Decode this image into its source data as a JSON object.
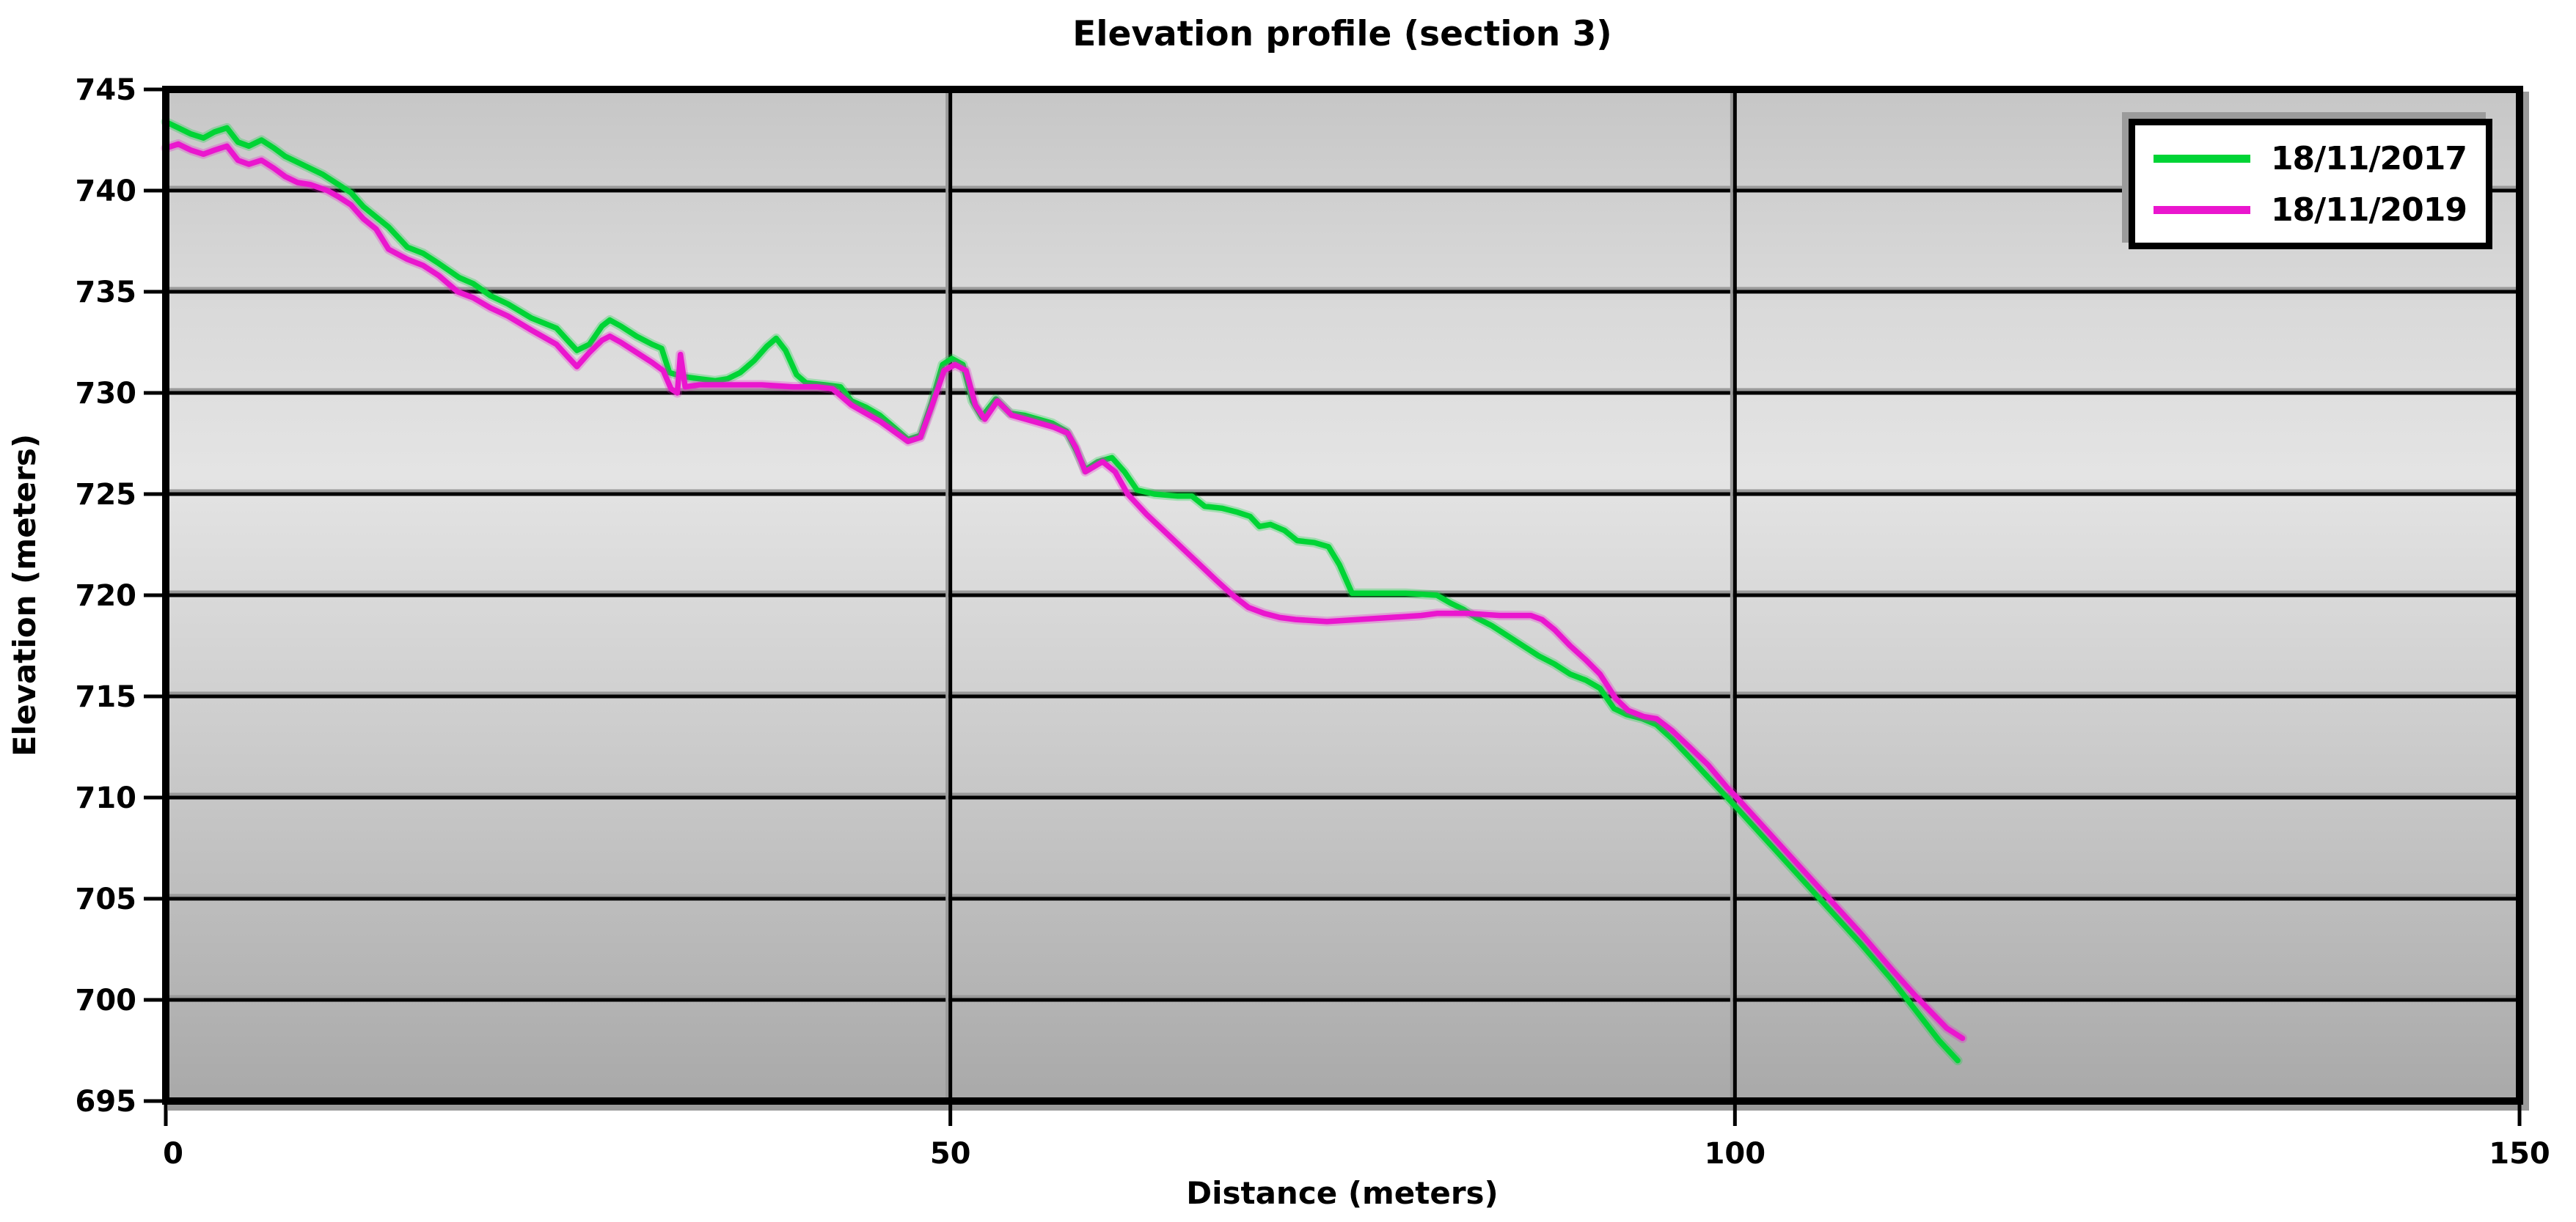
{
  "title": "Elevation profile (section 3)",
  "x_axis": {
    "label": "Distance (meters)",
    "ticks": [
      0,
      50,
      100,
      150
    ],
    "min": 0,
    "max": 150
  },
  "y_axis": {
    "label": "Elevation (meters)",
    "ticks": [
      745,
      740,
      735,
      730,
      725,
      720,
      715,
      710,
      705,
      700,
      695
    ],
    "min": 695,
    "max": 745
  },
  "chart_data": {
    "type": "line",
    "title": "Elevation profile (section 3)",
    "xlabel": "Distance (meters)",
    "ylabel": "Elevation (meters)",
    "xlim": [
      0,
      150
    ],
    "ylim": [
      695,
      745
    ],
    "grid": true,
    "legend_position": "top-right",
    "colors": {
      "background_top": "#c6c6c6",
      "background_mid": "#e4e4e4",
      "background_bottom": "#a9a9a9",
      "gridline": "#000000",
      "grid_shadow": "#9a9a9a",
      "border": "#000000",
      "border_shadow": "#9b9b9b"
    },
    "series": [
      {
        "name": "18/11/2017",
        "color": "#00d435",
        "points": [
          [
            0,
            743.4
          ],
          [
            0.8,
            743.1
          ],
          [
            1.6,
            742.8
          ],
          [
            2.4,
            742.6
          ],
          [
            3.1,
            742.9
          ],
          [
            3.9,
            743.1
          ],
          [
            4.6,
            742.4
          ],
          [
            5.3,
            742.2
          ],
          [
            6.1,
            742.5
          ],
          [
            6.9,
            742.1
          ],
          [
            7.6,
            741.7
          ],
          [
            8.4,
            741.4
          ],
          [
            9.2,
            741.1
          ],
          [
            10,
            740.8
          ],
          [
            11,
            740.3
          ],
          [
            11.8,
            739.9
          ],
          [
            12.6,
            739.2
          ],
          [
            13.4,
            738.7
          ],
          [
            14.2,
            738.2
          ],
          [
            15.4,
            737.2
          ],
          [
            16.4,
            736.9
          ],
          [
            17.4,
            736.4
          ],
          [
            18.7,
            735.7
          ],
          [
            19.6,
            735.4
          ],
          [
            20.7,
            734.8
          ],
          [
            21.8,
            734.4
          ],
          [
            23.3,
            733.7
          ],
          [
            24.9,
            733.2
          ],
          [
            25.6,
            732.6
          ],
          [
            26.2,
            732.1
          ],
          [
            27,
            732.4
          ],
          [
            27.8,
            733.3
          ],
          [
            28.3,
            733.6
          ],
          [
            29,
            733.3
          ],
          [
            30,
            732.8
          ],
          [
            31,
            732.4
          ],
          [
            31.6,
            732.2
          ],
          [
            32.1,
            731.0
          ],
          [
            33,
            730.8
          ],
          [
            34,
            730.7
          ],
          [
            35,
            730.6
          ],
          [
            35.8,
            730.7
          ],
          [
            36.6,
            731.0
          ],
          [
            37.5,
            731.6
          ],
          [
            38.3,
            732.3
          ],
          [
            38.9,
            732.7
          ],
          [
            39.5,
            732.1
          ],
          [
            40.2,
            730.9
          ],
          [
            40.8,
            730.5
          ],
          [
            42,
            730.4
          ],
          [
            43,
            730.3
          ],
          [
            43.7,
            729.6
          ],
          [
            44.6,
            729.3
          ],
          [
            45.5,
            728.9
          ],
          [
            46.4,
            728.3
          ],
          [
            47.3,
            727.7
          ],
          [
            48.1,
            727.9
          ],
          [
            48.8,
            729.5
          ],
          [
            49.5,
            731.4
          ],
          [
            50.1,
            731.7
          ],
          [
            50.8,
            731.4
          ],
          [
            51.4,
            729.6
          ],
          [
            52,
            728.8
          ],
          [
            52.9,
            729.7
          ],
          [
            53.8,
            729.0
          ],
          [
            54.7,
            728.9
          ],
          [
            55.6,
            728.7
          ],
          [
            56.5,
            728.5
          ],
          [
            57.4,
            728.1
          ],
          [
            58,
            727.2
          ],
          [
            58.6,
            726.2
          ],
          [
            59.4,
            726.6
          ],
          [
            60.3,
            726.8
          ],
          [
            61.1,
            726.1
          ],
          [
            61.9,
            725.2
          ],
          [
            63,
            725.0
          ],
          [
            64.5,
            724.9
          ],
          [
            65.4,
            724.9
          ],
          [
            66.2,
            724.4
          ],
          [
            67.3,
            724.3
          ],
          [
            68.3,
            724.1
          ],
          [
            69.1,
            723.9
          ],
          [
            69.7,
            723.4
          ],
          [
            70.4,
            723.5
          ],
          [
            71.3,
            723.2
          ],
          [
            72.1,
            722.7
          ],
          [
            73.2,
            722.6
          ],
          [
            74.1,
            722.4
          ],
          [
            74.8,
            721.5
          ],
          [
            75.6,
            720.1
          ],
          [
            77,
            720.1
          ],
          [
            79,
            720.1
          ],
          [
            81,
            720.0
          ],
          [
            81.9,
            719.6
          ],
          [
            82.7,
            719.3
          ],
          [
            83.5,
            718.9
          ],
          [
            84.5,
            718.5
          ],
          [
            85.5,
            718.0
          ],
          [
            86.5,
            717.5
          ],
          [
            87.5,
            717.0
          ],
          [
            88.5,
            716.6
          ],
          [
            89.5,
            716.1
          ],
          [
            90.5,
            715.8
          ],
          [
            91.4,
            715.4
          ],
          [
            92.3,
            714.4
          ],
          [
            93.1,
            714.1
          ],
          [
            94.1,
            713.9
          ],
          [
            95,
            713.6
          ],
          [
            96,
            712.9
          ],
          [
            97.1,
            712.0
          ],
          [
            98.3,
            711.0
          ],
          [
            100,
            709.6
          ],
          [
            102,
            707.9
          ],
          [
            104,
            706.2
          ],
          [
            106,
            704.5
          ],
          [
            108,
            702.8
          ],
          [
            110,
            701.0
          ],
          [
            111,
            700.0
          ],
          [
            112,
            699.0
          ],
          [
            113,
            698.0
          ],
          [
            114.2,
            697.0
          ]
        ]
      },
      {
        "name": "18/11/2019",
        "color": "#ea16ce",
        "points": [
          [
            0,
            742.1
          ],
          [
            0.8,
            742.3
          ],
          [
            1.6,
            742.0
          ],
          [
            2.4,
            741.8
          ],
          [
            3.1,
            742.0
          ],
          [
            3.9,
            742.2
          ],
          [
            4.6,
            741.5
          ],
          [
            5.3,
            741.3
          ],
          [
            6.1,
            741.5
          ],
          [
            6.9,
            741.1
          ],
          [
            7.6,
            740.7
          ],
          [
            8.4,
            740.4
          ],
          [
            9.2,
            740.3
          ],
          [
            10.3,
            740.0
          ],
          [
            11,
            739.7
          ],
          [
            11.8,
            739.3
          ],
          [
            12.6,
            738.6
          ],
          [
            13.4,
            738.1
          ],
          [
            14.2,
            737.1
          ],
          [
            15.4,
            736.6
          ],
          [
            16.4,
            736.3
          ],
          [
            17.4,
            735.8
          ],
          [
            18.6,
            735.0
          ],
          [
            19.6,
            734.7
          ],
          [
            20.7,
            734.2
          ],
          [
            21.8,
            733.8
          ],
          [
            23.3,
            733.1
          ],
          [
            24.9,
            732.4
          ],
          [
            25.6,
            731.8
          ],
          [
            26.2,
            731.3
          ],
          [
            27,
            732.0
          ],
          [
            27.8,
            732.6
          ],
          [
            28.3,
            732.8
          ],
          [
            29,
            732.5
          ],
          [
            30,
            732.0
          ],
          [
            31,
            731.5
          ],
          [
            31.7,
            731.1
          ],
          [
            32.2,
            730.2
          ],
          [
            32.6,
            730.0
          ],
          [
            32.8,
            731.9
          ],
          [
            33.1,
            730.3
          ],
          [
            34,
            730.4
          ],
          [
            36,
            730.4
          ],
          [
            38,
            730.4
          ],
          [
            40,
            730.3
          ],
          [
            41.5,
            730.3
          ],
          [
            42.5,
            730.2
          ],
          [
            43.7,
            729.4
          ],
          [
            44.6,
            729.0
          ],
          [
            45.5,
            728.6
          ],
          [
            46.4,
            728.1
          ],
          [
            47.3,
            727.6
          ],
          [
            48.1,
            727.8
          ],
          [
            48.8,
            729.3
          ],
          [
            49.6,
            731.1
          ],
          [
            50.3,
            731.4
          ],
          [
            51,
            731.1
          ],
          [
            51.6,
            729.4
          ],
          [
            52.2,
            728.7
          ],
          [
            53,
            729.6
          ],
          [
            53.9,
            728.9
          ],
          [
            54.8,
            728.7
          ],
          [
            55.7,
            728.5
          ],
          [
            56.6,
            728.3
          ],
          [
            57.5,
            728.0
          ],
          [
            58,
            727.3
          ],
          [
            58.6,
            726.1
          ],
          [
            59.7,
            726.6
          ],
          [
            60.5,
            726.1
          ],
          [
            61.3,
            725.0
          ],
          [
            62.5,
            724.0
          ],
          [
            64,
            722.9
          ],
          [
            65.5,
            721.8
          ],
          [
            67,
            720.7
          ],
          [
            68,
            720.0
          ],
          [
            69,
            719.4
          ],
          [
            70,
            719.1
          ],
          [
            71,
            718.9
          ],
          [
            72,
            718.8
          ],
          [
            74,
            718.7
          ],
          [
            76,
            718.8
          ],
          [
            78,
            718.9
          ],
          [
            80,
            719.0
          ],
          [
            81,
            719.1
          ],
          [
            83,
            719.1
          ],
          [
            85,
            719.0
          ],
          [
            87,
            719.0
          ],
          [
            87.7,
            718.8
          ],
          [
            88.5,
            718.3
          ],
          [
            89.5,
            717.5
          ],
          [
            90.5,
            716.8
          ],
          [
            91.4,
            716.1
          ],
          [
            92.4,
            714.9
          ],
          [
            93.2,
            714.3
          ],
          [
            94.2,
            714.0
          ],
          [
            95,
            713.9
          ],
          [
            96,
            713.3
          ],
          [
            97.1,
            712.5
          ],
          [
            98.3,
            711.6
          ],
          [
            99.5,
            710.5
          ],
          [
            100,
            710.1
          ],
          [
            102,
            708.4
          ],
          [
            104,
            706.7
          ],
          [
            106,
            705.0
          ],
          [
            108,
            703.3
          ],
          [
            110,
            701.5
          ],
          [
            111.5,
            700.2
          ],
          [
            112.5,
            699.4
          ],
          [
            113.5,
            698.6
          ],
          [
            114.5,
            698.1
          ]
        ]
      }
    ]
  }
}
